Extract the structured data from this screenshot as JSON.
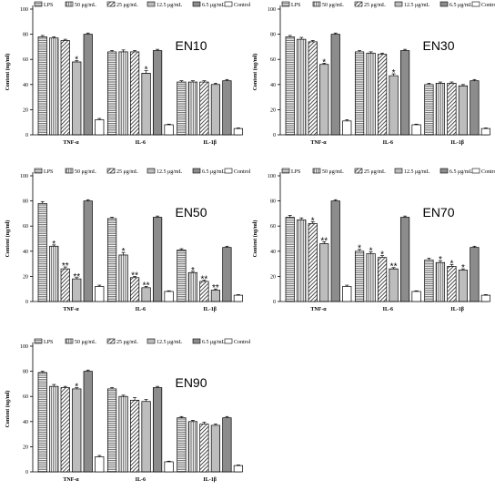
{
  "chart_data": [
    {
      "type": "bar",
      "title": "EN10",
      "ylabel": "Content (ng/ml)",
      "ylim": [
        0,
        100
      ],
      "yticks": [
        0,
        20,
        40,
        60,
        80,
        100
      ],
      "categories": [
        "TNF-α",
        "IL-6",
        "IL-1β"
      ],
      "legend": [
        "LPS",
        "50 μg/mL",
        "25 μg/mL",
        "12.5 μg/mL",
        "6.5 μg/mL",
        "Control"
      ],
      "legend_position": "top",
      "series": [
        {
          "name": "LPS",
          "values": [
            78,
            66,
            42
          ],
          "errors": [
            1,
            1,
            1
          ],
          "marks": [
            "",
            "",
            ""
          ]
        },
        {
          "name": "50 μg/mL",
          "values": [
            77,
            66,
            42
          ],
          "errors": [
            1,
            1.5,
            1
          ],
          "marks": [
            "",
            "",
            ""
          ]
        },
        {
          "name": "25 μg/mL",
          "values": [
            75,
            66,
            42
          ],
          "errors": [
            1,
            1,
            1
          ],
          "marks": [
            "",
            "",
            ""
          ]
        },
        {
          "name": "12.5 μg/mL",
          "values": [
            58,
            49,
            40
          ],
          "errors": [
            1,
            2,
            1
          ],
          "marks": [
            "*",
            "*",
            ""
          ]
        },
        {
          "name": "6.5 μg/mL",
          "values": [
            80,
            67,
            43
          ],
          "errors": [
            1,
            1,
            1
          ],
          "marks": [
            "",
            "",
            ""
          ]
        },
        {
          "name": "Control",
          "values": [
            12,
            8,
            5
          ],
          "errors": [
            1,
            0.5,
            0.5
          ],
          "marks": [
            "",
            "",
            ""
          ]
        }
      ]
    },
    {
      "type": "bar",
      "title": "EN30",
      "ylabel": "Content (ng/ml)",
      "ylim": [
        0,
        100
      ],
      "yticks": [
        0,
        20,
        40,
        60,
        80,
        100
      ],
      "categories": [
        "TNF-α",
        "IL-6",
        "IL-1β"
      ],
      "legend": [
        "LPS",
        "50 μg/mL",
        "25 μg/mL",
        "12.5 μg/mL",
        "6.5 μg/mL",
        "Control"
      ],
      "legend_position": "top",
      "series": [
        {
          "name": "LPS",
          "values": [
            78,
            66,
            40
          ],
          "errors": [
            1,
            1,
            1
          ],
          "marks": [
            "",
            "",
            ""
          ]
        },
        {
          "name": "50 μg/mL",
          "values": [
            76,
            65,
            41
          ],
          "errors": [
            1.5,
            1,
            1
          ],
          "marks": [
            "",
            "",
            ""
          ]
        },
        {
          "name": "25 μg/mL",
          "values": [
            74,
            64,
            41
          ],
          "errors": [
            1,
            1,
            1
          ],
          "marks": [
            "",
            "",
            ""
          ]
        },
        {
          "name": "12.5 μg/mL",
          "values": [
            56,
            47,
            39
          ],
          "errors": [
            1,
            1.5,
            1
          ],
          "marks": [
            "*",
            "*",
            ""
          ]
        },
        {
          "name": "6.5 μg/mL",
          "values": [
            80,
            67,
            43
          ],
          "errors": [
            1,
            1,
            1
          ],
          "marks": [
            "",
            "",
            ""
          ]
        },
        {
          "name": "Control",
          "values": [
            11,
            8,
            5
          ],
          "errors": [
            1,
            0.5,
            0.5
          ],
          "marks": [
            "",
            "",
            ""
          ]
        }
      ]
    },
    {
      "type": "bar",
      "title": "EN50",
      "ylabel": "Content (ng/ml)",
      "ylim": [
        0,
        100
      ],
      "yticks": [
        0,
        20,
        40,
        60,
        80,
        100
      ],
      "categories": [
        "TNF-α",
        "IL-6",
        "IL-1β"
      ],
      "legend": [
        "LPS",
        "50 μg/mL",
        "25 μg/mL",
        "12.5 μg/mL",
        "6.5 μg/mL",
        "Control"
      ],
      "legend_position": "top",
      "series": [
        {
          "name": "LPS",
          "values": [
            78,
            66,
            41
          ],
          "errors": [
            1.5,
            1,
            1
          ],
          "marks": [
            "",
            "",
            ""
          ]
        },
        {
          "name": "50 μg/mL",
          "values": [
            44,
            37,
            23
          ],
          "errors": [
            1,
            2,
            1
          ],
          "marks": [
            "*",
            "*",
            "*"
          ]
        },
        {
          "name": "25 μg/mL",
          "values": [
            26,
            19,
            16
          ],
          "errors": [
            1.5,
            1,
            1
          ],
          "marks": [
            "**",
            "**",
            "**"
          ]
        },
        {
          "name": "12.5 μg/mL",
          "values": [
            18,
            11,
            9
          ],
          "errors": [
            1,
            1,
            1
          ],
          "marks": [
            "**",
            "**",
            "**"
          ]
        },
        {
          "name": "6.5 μg/mL",
          "values": [
            80,
            67,
            43
          ],
          "errors": [
            1,
            1,
            1
          ],
          "marks": [
            "",
            "",
            ""
          ]
        },
        {
          "name": "Control",
          "values": [
            12,
            8,
            5
          ],
          "errors": [
            1,
            0.5,
            0.5
          ],
          "marks": [
            "",
            "",
            ""
          ]
        }
      ]
    },
    {
      "type": "bar",
      "title": "EN70",
      "ylabel": "Content (ng/ml)",
      "ylim": [
        0,
        100
      ],
      "yticks": [
        0,
        20,
        40,
        60,
        80,
        100
      ],
      "categories": [
        "TNF-α",
        "IL-6",
        "IL-1β"
      ],
      "legend": [
        "LPS",
        "50 μg/mL",
        "25 μg/mL",
        "12.5 μg/mL",
        "6.5 μg/mL",
        "Control"
      ],
      "legend_position": "top",
      "series": [
        {
          "name": "LPS",
          "values": [
            67,
            40,
            33
          ],
          "errors": [
            1.5,
            1.5,
            1.5
          ],
          "marks": [
            "",
            "*",
            ""
          ]
        },
        {
          "name": "50 μg/mL",
          "values": [
            65,
            38,
            31
          ],
          "errors": [
            1.5,
            1.5,
            1.5
          ],
          "marks": [
            "",
            "*",
            "*"
          ]
        },
        {
          "name": "25 μg/mL",
          "values": [
            62,
            35,
            28
          ],
          "errors": [
            1.5,
            1.5,
            1.5
          ],
          "marks": [
            "*",
            "*",
            "*"
          ]
        },
        {
          "name": "12.5 μg/mL",
          "values": [
            46,
            26,
            25
          ],
          "errors": [
            1.5,
            1,
            1
          ],
          "marks": [
            "**",
            "**",
            "*"
          ]
        },
        {
          "name": "6.5 μg/mL",
          "values": [
            80,
            67,
            43
          ],
          "errors": [
            1,
            1,
            1
          ],
          "marks": [
            "",
            "",
            ""
          ]
        },
        {
          "name": "Control",
          "values": [
            12,
            8,
            5
          ],
          "errors": [
            1,
            0.5,
            0.5
          ],
          "marks": [
            "",
            "",
            ""
          ]
        }
      ]
    },
    {
      "type": "bar",
      "title": "EN90",
      "ylabel": "Content (ng/ml)",
      "ylim": [
        0,
        100
      ],
      "yticks": [
        0,
        20,
        40,
        60,
        80,
        100
      ],
      "categories": [
        "TNF-α",
        "IL-6",
        "IL-1β"
      ],
      "legend": [
        "LPS",
        "50 μg/mL",
        "25 μg/mL",
        "12.5 μg/mL",
        "6.5 μg/mL",
        "Control"
      ],
      "legend_position": "top",
      "series": [
        {
          "name": "LPS",
          "values": [
            79,
            66,
            43
          ],
          "errors": [
            1,
            1,
            1
          ],
          "marks": [
            "",
            "",
            ""
          ]
        },
        {
          "name": "50 μg/mL",
          "values": [
            68,
            60,
            40
          ],
          "errors": [
            1.5,
            1,
            1
          ],
          "marks": [
            "",
            "",
            ""
          ]
        },
        {
          "name": "25 μg/mL",
          "values": [
            67,
            57,
            38
          ],
          "errors": [
            1,
            2,
            1.5
          ],
          "marks": [
            "",
            "",
            ""
          ]
        },
        {
          "name": "12.5 μg/mL",
          "values": [
            66,
            56,
            37
          ],
          "errors": [
            1,
            1.5,
            1
          ],
          "marks": [
            "*",
            "",
            ""
          ]
        },
        {
          "name": "6.5 μg/mL",
          "values": [
            80,
            67,
            43
          ],
          "errors": [
            1,
            1,
            1
          ],
          "marks": [
            "",
            "",
            ""
          ]
        },
        {
          "name": "Control",
          "values": [
            12,
            8,
            5
          ],
          "errors": [
            1,
            0.5,
            0.5
          ],
          "marks": [
            "",
            "",
            ""
          ]
        }
      ]
    }
  ]
}
